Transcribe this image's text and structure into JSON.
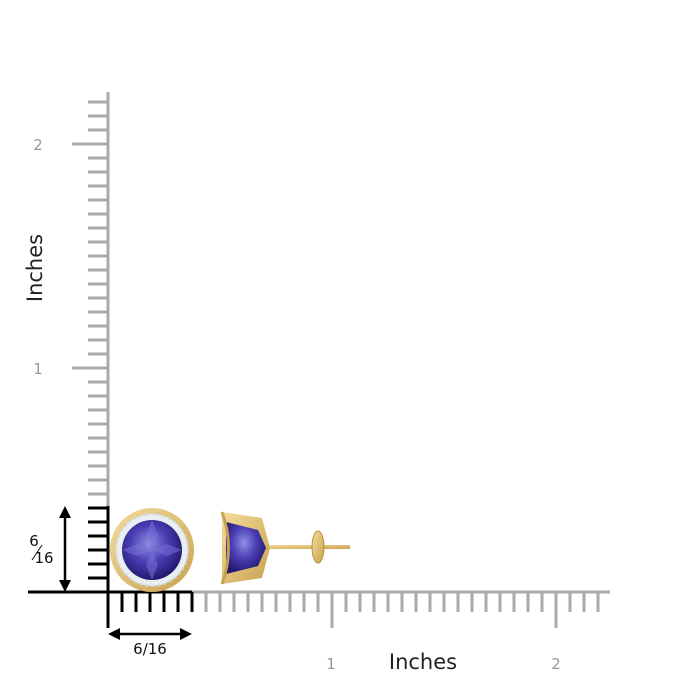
{
  "y_axis": {
    "label": "Inches",
    "ticks": [
      "1",
      "2"
    ]
  },
  "x_axis": {
    "label": "Inches",
    "ticks": [
      "1",
      "2"
    ]
  },
  "size_marker": {
    "width": "6/16",
    "height": {
      "numerator": "6",
      "denominator": "16"
    }
  }
}
